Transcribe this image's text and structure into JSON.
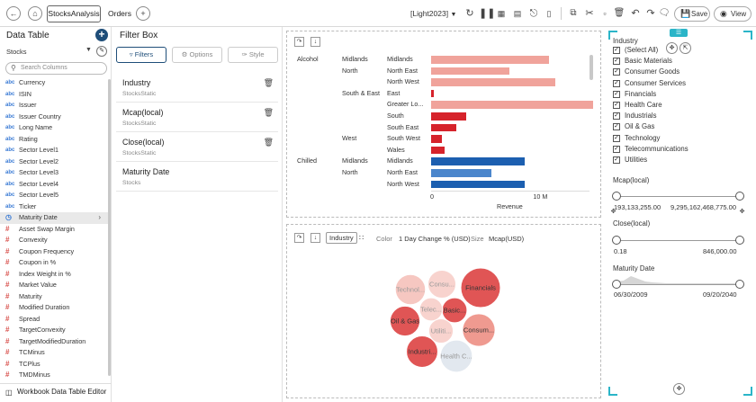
{
  "toolbar": {
    "tabs": [
      "StocksAnalysis",
      "Orders"
    ],
    "add_tab": "+",
    "theme": "[Light2023]",
    "save_label": "Save",
    "view_label": "View"
  },
  "data_table": {
    "title": "Data Table",
    "source": "Stocks",
    "search_placeholder": "Search Columns",
    "footer": "Workbook Data Table Editor",
    "columns": [
      {
        "type": "abc",
        "name": "Currency"
      },
      {
        "type": "abc",
        "name": "ISIN"
      },
      {
        "type": "abc",
        "name": "Issuer"
      },
      {
        "type": "abc",
        "name": "Issuer Country"
      },
      {
        "type": "abc",
        "name": "Long Name"
      },
      {
        "type": "abc",
        "name": "Rating"
      },
      {
        "type": "abc",
        "name": "Sector Level1"
      },
      {
        "type": "abc",
        "name": "Sector Level2"
      },
      {
        "type": "abc",
        "name": "Sector Level3"
      },
      {
        "type": "abc",
        "name": "Sector Level4"
      },
      {
        "type": "abc",
        "name": "Sector Level5"
      },
      {
        "type": "abc",
        "name": "Ticker"
      },
      {
        "type": "date",
        "name": "Maturity Date"
      },
      {
        "type": "#",
        "name": "Asset Swap Margin"
      },
      {
        "type": "#",
        "name": "Convexity"
      },
      {
        "type": "#",
        "name": "Coupon Frequency"
      },
      {
        "type": "#",
        "name": "Coupon in %"
      },
      {
        "type": "#",
        "name": "Index Weight in %"
      },
      {
        "type": "#",
        "name": "Market Value"
      },
      {
        "type": "#",
        "name": "Maturity"
      },
      {
        "type": "#",
        "name": "Modified Duration"
      },
      {
        "type": "#",
        "name": "Spread"
      },
      {
        "type": "#",
        "name": "TargetConvexity"
      },
      {
        "type": "#",
        "name": "TargetModifiedDuration"
      },
      {
        "type": "#",
        "name": "TCMinus"
      },
      {
        "type": "#",
        "name": "TCPlus"
      },
      {
        "type": "#",
        "name": "TMDMinus"
      }
    ]
  },
  "filter_box": {
    "title": "Filter Box",
    "tabs": [
      "Filters",
      "Options",
      "Style"
    ],
    "items": [
      {
        "name": "Industry",
        "source": "StocksStatic"
      },
      {
        "name": "Mcap(local)",
        "source": "StocksStatic"
      },
      {
        "name": "Close(local)",
        "source": "StocksStatic"
      },
      {
        "name": "Maturity Date",
        "source": "Stocks"
      }
    ]
  },
  "chart_data": [
    {
      "type": "bar",
      "orientation": "horizontal",
      "xlabel": "Revenue",
      "x_ticks": [
        "0",
        "10 M"
      ],
      "xlim": [
        0,
        14500000
      ],
      "rows": [
        {
          "l1": "Alcohol",
          "l2": "Midlands",
          "l3": "Midlands",
          "value": 10800000,
          "color": "#f0a39b"
        },
        {
          "l1": "",
          "l2": "North",
          "l3": "North East",
          "value": 7200000,
          "color": "#f0a39b"
        },
        {
          "l1": "",
          "l2": "",
          "l3": "North West",
          "value": 11400000,
          "color": "#f0a39b"
        },
        {
          "l1": "",
          "l2": "South & East",
          "l3": "East",
          "value": 250000,
          "color": "#d6232b"
        },
        {
          "l1": "",
          "l2": "",
          "l3": "Greater Lo...",
          "value": 14900000,
          "color": "#f0a39b"
        },
        {
          "l1": "",
          "l2": "",
          "l3": "South",
          "value": 3200000,
          "color": "#d6232b"
        },
        {
          "l1": "",
          "l2": "",
          "l3": "South East",
          "value": 2300000,
          "color": "#d6232b"
        },
        {
          "l1": "",
          "l2": "West",
          "l3": "South West",
          "value": 1000000,
          "color": "#d6232b"
        },
        {
          "l1": "",
          "l2": "",
          "l3": "Wales",
          "value": 1200000,
          "color": "#d6232b"
        },
        {
          "l1": "Chilled",
          "l2": "Midlands",
          "l3": "Midlands",
          "value": 8600000,
          "color": "#1c5fb0"
        },
        {
          "l1": "",
          "l2": "North",
          "l3": "North East",
          "value": 5500000,
          "color": "#4b86cc"
        },
        {
          "l1": "",
          "l2": "",
          "l3": "North West",
          "value": 8600000,
          "color": "#1c5fb0"
        }
      ]
    },
    {
      "type": "bubble",
      "group_by": "Industry",
      "color_label": "Color",
      "color_field": "1 Day Change % (USD)",
      "size_label": "Size",
      "size_field": "Mcap(USD)",
      "bubbles": [
        {
          "label": "Financials",
          "size": 100,
          "color": "#e05555"
        },
        {
          "label": "Consum...",
          "size": 68,
          "color": "#ef9a90"
        },
        {
          "label": "Technol...",
          "size": 58,
          "color": "#f6c7c1"
        },
        {
          "label": "Consu...",
          "size": 50,
          "color": "#f8d3ce"
        },
        {
          "label": "Oil & Gas",
          "size": 57,
          "color": "#e05555"
        },
        {
          "label": "Industri...",
          "size": 63,
          "color": "#e05555"
        },
        {
          "label": "Health C...",
          "size": 66,
          "color": "#e2e8ef"
        },
        {
          "label": "Basic...",
          "size": 40,
          "color": "#e05555"
        },
        {
          "label": "Telec...",
          "size": 34,
          "color": "#f8d3ce"
        },
        {
          "label": "Utiliti...",
          "size": 38,
          "color": "#f8d3ce"
        }
      ]
    }
  ],
  "right_panel": {
    "industry": {
      "label": "Industry",
      "options": [
        "(Select All)",
        "Basic Materials",
        "Consumer Goods",
        "Consumer Services",
        "Financials",
        "Health Care",
        "Industrials",
        "Oil & Gas",
        "Technology",
        "Telecommunications",
        "Utilities"
      ]
    },
    "mcap": {
      "label": "Mcap(local)",
      "min": "193,133,255.00",
      "max": "9,295,162,468,775.00"
    },
    "close": {
      "label": "Close(local)",
      "min": "0.18",
      "max": "846,000.00"
    },
    "maturity": {
      "label": "Maturity Date",
      "min": "06/30/2009",
      "max": "09/20/2040"
    }
  }
}
